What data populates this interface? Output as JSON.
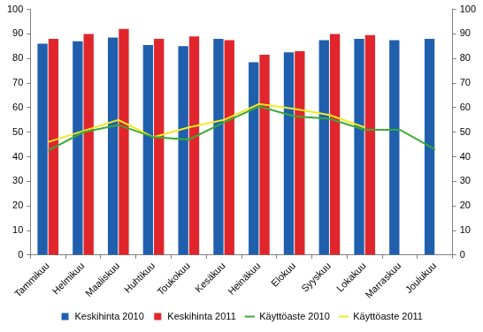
{
  "chart_data": {
    "type": "bar",
    "categories": [
      "Tammikuu",
      "Helmikuu",
      "Maaliskuu",
      "Huhtikuu",
      "Toukokuu",
      "Kesäkuu",
      "Heinäkuu",
      "Elokuu",
      "Syyskuu",
      "Lokakuu",
      "Marraskuu",
      "Joulukuu"
    ],
    "series": [
      {
        "name": "Keskihinta 2010",
        "type": "bar",
        "color": "#1f5fae",
        "values": [
          86,
          87,
          88.5,
          85.5,
          85,
          88,
          78.5,
          82.5,
          87.5,
          88,
          87.5,
          88
        ]
      },
      {
        "name": "Keskihinta 2011",
        "type": "bar",
        "color": "#e0262c",
        "values": [
          88,
          90,
          92,
          88,
          89,
          87.5,
          81.5,
          83,
          90,
          89.5,
          null,
          null
        ]
      },
      {
        "name": "Käyttöaste 2010",
        "type": "line",
        "color": "#3aa935",
        "axis": "y2",
        "values": [
          42.5,
          50,
          53,
          48,
          47,
          54,
          60.5,
          56.5,
          55.5,
          51,
          51,
          43
        ]
      },
      {
        "name": "Käyttöaste 2011",
        "type": "line",
        "color": "#f2ea22",
        "axis": "y2",
        "values": [
          46,
          50.5,
          55,
          48,
          52,
          55,
          61.5,
          59.5,
          57,
          52,
          null,
          null
        ]
      }
    ],
    "ylim": [
      0,
      100
    ],
    "yticks": [
      0,
      10,
      20,
      30,
      40,
      50,
      60,
      70,
      80,
      90,
      100
    ],
    "y2lim": [
      0,
      100
    ],
    "y2ticks": [
      0,
      10,
      20,
      30,
      40,
      50,
      60,
      70,
      80,
      90,
      100
    ],
    "grid": false,
    "legend": "bottom"
  }
}
